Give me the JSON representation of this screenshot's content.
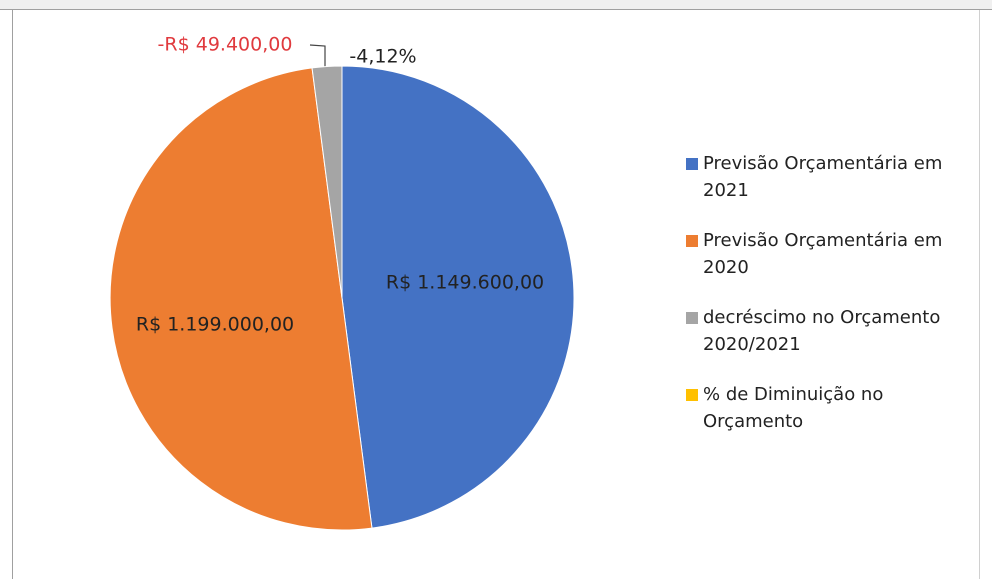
{
  "chart_data": {
    "type": "pie",
    "categories": [
      "Previsão Orçamentária em 2021",
      "Previsão Orçamentária em 2020",
      "decréscimo no Orçamento 2020/2021",
      "% de Diminuição no Orçamento"
    ],
    "values": [
      1149600,
      1199000,
      -49400,
      -4.12
    ],
    "value_labels": [
      "R$ 1.149.600,00",
      "R$ 1.199.000,00",
      "-R$ 49.400,00",
      "-4,12%"
    ],
    "colors": [
      "#4472c4",
      "#ed7d31",
      "#a5a5a5",
      "#ffc000"
    ],
    "label_colors": [
      "#222222",
      "#222222",
      "#e03a3e",
      "#222222"
    ],
    "legend": "right"
  }
}
